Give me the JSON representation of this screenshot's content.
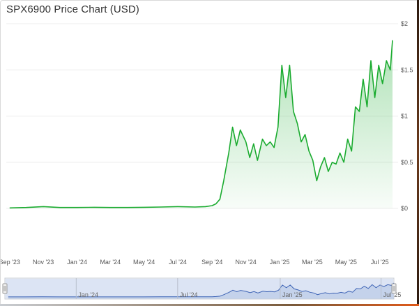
{
  "chart_data": {
    "type": "area",
    "title": "SPX6900 Price Chart (USD)",
    "xlabel": "",
    "ylabel": "",
    "ylim": [
      0,
      2
    ],
    "y_ticks": [
      "$0",
      "$0.5",
      "$1",
      "$1.5",
      "$2"
    ],
    "x_ticks": [
      "Sep '23",
      "Nov '23",
      "Jan '24",
      "Mar '24",
      "May '24",
      "Jul '24",
      "Sep '24",
      "Nov '24",
      "Jan '25",
      "Mar '25",
      "May '25",
      "Jul '25"
    ],
    "navigator_ticks": [
      "Jan '24",
      "Jul '24",
      "Jan '25",
      "Jul '25"
    ],
    "grid": "horizontal",
    "line_color": "#1aab2f",
    "fill_color": "#1aab2f",
    "series": [
      {
        "x": [
          "2023-09-01",
          "2023-10-01",
          "2023-11-01",
          "2023-12-01",
          "2024-01-01",
          "2024-02-01",
          "2024-03-01",
          "2024-04-01",
          "2024-05-01",
          "2024-06-01",
          "2024-07-01",
          "2024-08-01",
          "2024-08-20",
          "2024-09-01",
          "2024-09-08",
          "2024-09-15",
          "2024-09-22",
          "2024-10-01",
          "2024-10-08",
          "2024-10-15",
          "2024-10-22",
          "2024-11-01",
          "2024-11-08",
          "2024-11-15",
          "2024-11-22",
          "2024-12-01",
          "2024-12-08",
          "2024-12-15",
          "2024-12-22",
          "2024-12-29",
          "2025-01-05",
          "2025-01-12",
          "2025-01-19",
          "2025-01-26",
          "2025-02-02",
          "2025-02-09",
          "2025-02-16",
          "2025-02-23",
          "2025-03-02",
          "2025-03-09",
          "2025-03-16",
          "2025-03-23",
          "2025-03-30",
          "2025-04-06",
          "2025-04-13",
          "2025-04-20",
          "2025-04-27",
          "2025-05-04",
          "2025-05-11",
          "2025-05-18",
          "2025-05-25",
          "2025-06-01",
          "2025-06-08",
          "2025-06-15",
          "2025-06-22",
          "2025-06-29",
          "2025-07-06",
          "2025-07-13",
          "2025-07-20",
          "2025-07-24"
        ],
        "values": [
          0.005,
          0.01,
          0.02,
          0.01,
          0.01,
          0.012,
          0.01,
          0.01,
          0.012,
          0.015,
          0.02,
          0.015,
          0.02,
          0.03,
          0.05,
          0.1,
          0.3,
          0.6,
          0.88,
          0.68,
          0.85,
          0.72,
          0.55,
          0.7,
          0.52,
          0.75,
          0.68,
          0.72,
          0.66,
          0.88,
          1.55,
          1.2,
          1.55,
          1.05,
          0.92,
          0.72,
          0.8,
          0.62,
          0.52,
          0.3,
          0.45,
          0.55,
          0.4,
          0.5,
          0.48,
          0.6,
          0.5,
          0.75,
          0.62,
          1.1,
          1.05,
          1.4,
          1.1,
          1.6,
          1.2,
          1.55,
          1.35,
          1.6,
          1.5,
          1.82
        ]
      }
    ]
  }
}
